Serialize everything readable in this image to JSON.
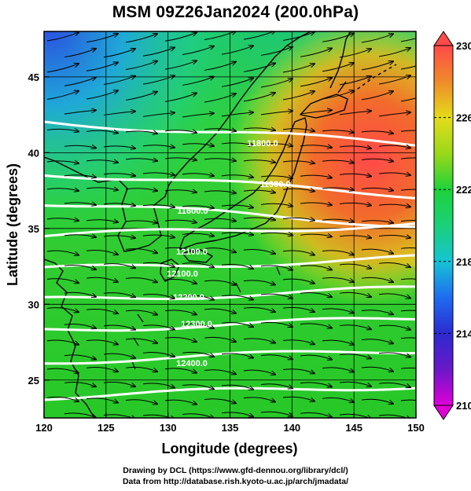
{
  "title": "MSM 09Z26Jan2024 (200.0hPa)",
  "map": {
    "variable": "temperature shading with streamlines and geopotential height contours",
    "lon_range": [
      120,
      150
    ],
    "lat_range": [
      22.5,
      48
    ],
    "xlabel": "Longitude (degrees)",
    "ylabel": "Latitude  (degrees)",
    "x_ticks": [
      "120",
      "125",
      "130",
      "135",
      "140",
      "145",
      "150"
    ],
    "y_ticks": [
      "25",
      "30",
      "35",
      "40",
      "45"
    ],
    "x_tick_values": [
      120,
      125,
      130,
      135,
      140,
      145,
      150
    ],
    "y_tick_values": [
      25,
      30,
      35,
      40,
      45
    ],
    "contour_labels": [
      "11800.0",
      "11900.0",
      "11600.0",
      "12000.0",
      "12100.0",
      "12200.0",
      "12300.0",
      "12400.0"
    ],
    "colors": {
      "cold": "#2a55e0",
      "cool": "#1fc8c8",
      "mid": "#1ed23a",
      "warm": "#d8e21e",
      "hot": "#f06a28",
      "hottest": "#ff4a4a",
      "contour": "#ffffff",
      "streamline": "#000000"
    }
  },
  "colorbar": {
    "range": [
      210,
      230
    ],
    "tick_labels": [
      "230",
      "226",
      "222",
      "218",
      "214",
      "210"
    ],
    "tick_values": [
      230,
      226,
      222,
      218,
      214,
      210
    ],
    "stops": [
      {
        "value": 210,
        "color": "#e000d8"
      },
      {
        "value": 212,
        "color": "#6a18c8"
      },
      {
        "value": 214,
        "color": "#2c2ad0"
      },
      {
        "value": 216,
        "color": "#1f6cf0"
      },
      {
        "value": 218,
        "color": "#16c4d4"
      },
      {
        "value": 220,
        "color": "#1ad078"
      },
      {
        "value": 222,
        "color": "#1ed23a"
      },
      {
        "value": 224,
        "color": "#9ad81a"
      },
      {
        "value": 226,
        "color": "#e4dc1a"
      },
      {
        "value": 228,
        "color": "#f08a2a"
      },
      {
        "value": 230,
        "color": "#ff4a4a"
      }
    ]
  },
  "credits": [
    "Drawing by DCL (https://www.gfd-dennou.org/library/dcl/)",
    "Data from http://database.rish.kyoto-u.ac.jp/arch/jmadata/"
  ]
}
